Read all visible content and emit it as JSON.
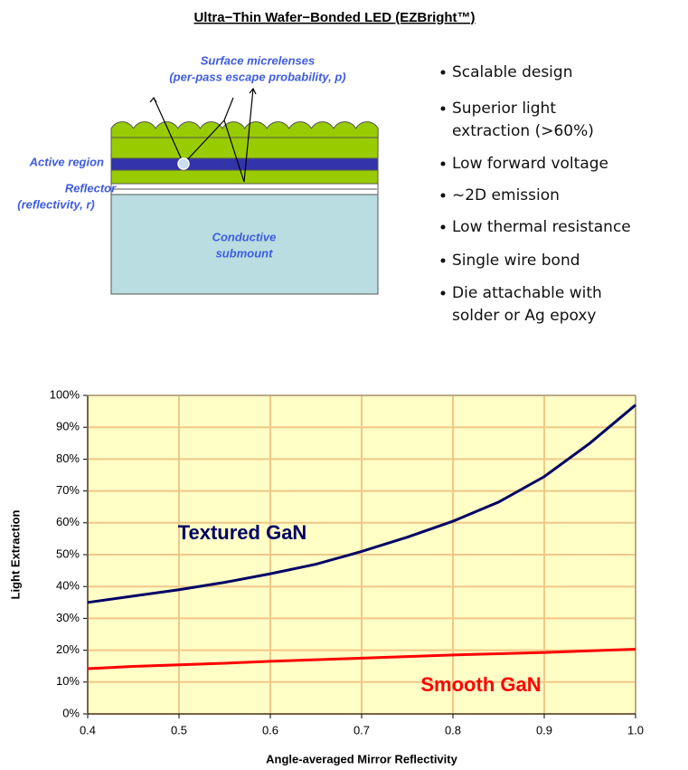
{
  "header": {
    "title": "Ultra−Thin Wafer−Bonded LED (EZBright™)"
  },
  "diagram": {
    "surface_label": [
      "Surface micrelenses",
      "(per-pass escape probability, p)"
    ],
    "active_label": "Active region",
    "reflector_label": [
      "Reflector",
      "(reflectivity, r)"
    ],
    "submount_label": [
      "Conductive",
      "submount"
    ]
  },
  "bullets": [
    [
      "Scalable design"
    ],
    [
      "Superior light",
      "extraction (>60%)"
    ],
    [
      "Low forward voltage"
    ],
    [
      "~2D emission"
    ],
    [
      "Low thermal resistance"
    ],
    [
      "Single wire bond"
    ],
    [
      "Die attachable with",
      "solder or Ag epoxy"
    ]
  ],
  "chart_data": {
    "type": "line",
    "xlabel": "Angle-averaged Mirror Reflectivity",
    "ylabel": "Light Extraction",
    "x": [
      0.4,
      0.45,
      0.5,
      0.55,
      0.6,
      0.65,
      0.7,
      0.75,
      0.8,
      0.85,
      0.9,
      0.95,
      1.0
    ],
    "series": [
      {
        "name": "Textured GaN",
        "color": "#000066",
        "values": [
          35,
          37,
          39,
          41.3,
          44,
          47,
          51,
          55.5,
          60.5,
          66.5,
          74.5,
          85,
          97
        ]
      },
      {
        "name": "Smooth GaN",
        "color": "#ff0000",
        "values": [
          14.2,
          14.9,
          15.4,
          15.9,
          16.5,
          17,
          17.5,
          18,
          18.5,
          18.9,
          19.3,
          19.8,
          20.3
        ]
      }
    ],
    "xlim": [
      0.4,
      1.0
    ],
    "ylim": [
      0,
      100
    ],
    "xticks": [
      0.4,
      0.5,
      0.6,
      0.7,
      0.8,
      0.9,
      {
        "value": 1,
        "label": "1.0"
      }
    ],
    "yticks": [
      {
        "value": 0,
        "label": "0%"
      },
      {
        "value": 10,
        "label": "10%"
      },
      {
        "value": 20,
        "label": "20%"
      },
      {
        "value": 30,
        "label": "30%"
      },
      {
        "value": 40,
        "label": "40%"
      },
      {
        "value": 50,
        "label": "50%"
      },
      {
        "value": 60,
        "label": "60%"
      },
      {
        "value": 70,
        "label": "70%"
      },
      {
        "value": 80,
        "label": "80%"
      },
      {
        "value": 90,
        "label": "90%"
      },
      {
        "value": 100,
        "label": "100%"
      }
    ],
    "grid": true
  }
}
